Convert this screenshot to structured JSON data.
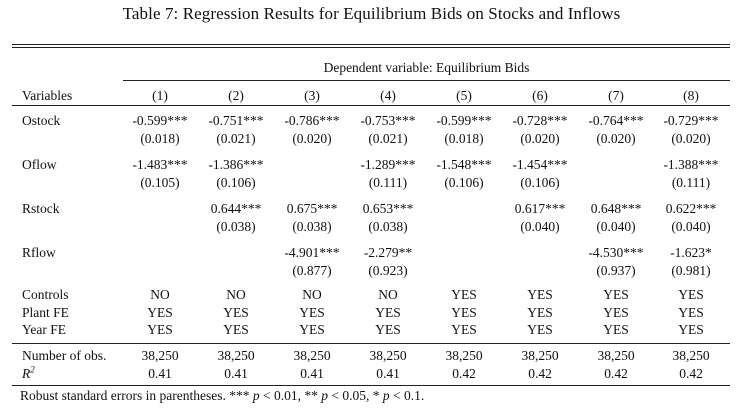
{
  "title": "Table 7: Regression Results for Equilibrium Bids on Stocks and Inflows",
  "dependent_variable": "Dependent variable: Equilibrium Bids",
  "variables_header": "Variables",
  "columns": [
    "(1)",
    "(2)",
    "(3)",
    "(4)",
    "(5)",
    "(6)",
    "(7)",
    "(8)"
  ],
  "coef_rows": [
    {
      "name": "Ostock",
      "coefs": [
        "-0.599***",
        "-0.751***",
        "-0.786***",
        "-0.753***",
        "-0.599***",
        "-0.728***",
        "-0.764***",
        "-0.729***"
      ],
      "ses": [
        "(0.018)",
        "(0.021)",
        "(0.020)",
        "(0.021)",
        "(0.018)",
        "(0.020)",
        "(0.020)",
        "(0.020)"
      ]
    },
    {
      "name": "Oflow",
      "coefs": [
        "-1.483***",
        "-1.386***",
        "",
        "-1.289***",
        "-1.548***",
        "-1.454***",
        "",
        "-1.388***"
      ],
      "ses": [
        "(0.105)",
        "(0.106)",
        "",
        "(0.111)",
        "(0.106)",
        "(0.106)",
        "",
        "(0.111)"
      ]
    },
    {
      "name": "Rstock",
      "coefs": [
        "",
        "0.644***",
        "0.675***",
        "0.653***",
        "",
        "0.617***",
        "0.648***",
        "0.622***"
      ],
      "ses": [
        "",
        "(0.038)",
        "(0.038)",
        "(0.038)",
        "",
        "(0.040)",
        "(0.040)",
        "(0.040)"
      ]
    },
    {
      "name": "Rflow",
      "coefs": [
        "",
        "",
        "-4.901***",
        "-2.279**",
        "",
        "",
        "-4.530***",
        "-1.623*"
      ],
      "ses": [
        "",
        "",
        "(0.877)",
        "(0.923)",
        "",
        "",
        "(0.937)",
        "(0.981)"
      ]
    }
  ],
  "fe_rows": [
    {
      "name": "Controls",
      "values": [
        "NO",
        "NO",
        "NO",
        "NO",
        "YES",
        "YES",
        "YES",
        "YES"
      ]
    },
    {
      "name": "Plant FE",
      "values": [
        "YES",
        "YES",
        "YES",
        "YES",
        "YES",
        "YES",
        "YES",
        "YES"
      ]
    },
    {
      "name": "Year FE",
      "values": [
        "YES",
        "YES",
        "YES",
        "YES",
        "YES",
        "YES",
        "YES",
        "YES"
      ]
    }
  ],
  "stat_rows": [
    {
      "name": "Number of obs.",
      "values": [
        "38,250",
        "38,250",
        "38,250",
        "38,250",
        "38,250",
        "38,250",
        "38,250",
        "38,250"
      ]
    },
    {
      "name_base": "R",
      "name_sup": "2",
      "values": [
        "0.41",
        "0.41",
        "0.41",
        "0.41",
        "0.42",
        "0.42",
        "0.42",
        "0.42"
      ]
    }
  ],
  "note": {
    "prefix": "Robust standard errors in parentheses. *** ",
    "p_symbol": "p",
    "t1": " < 0.01, ** ",
    "t2": " < 0.05, * ",
    "t3": " < 0.1."
  }
}
